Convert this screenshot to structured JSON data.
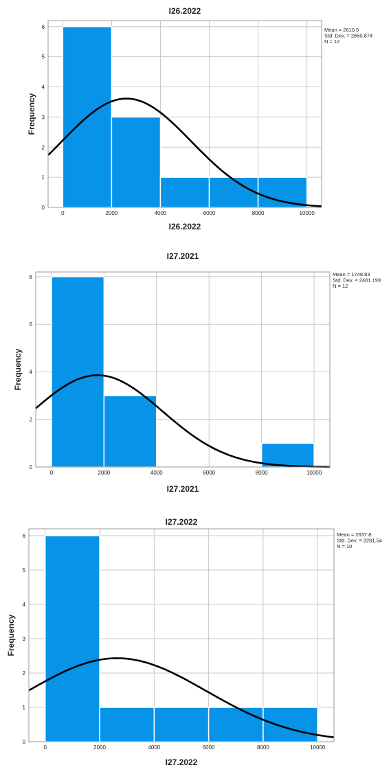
{
  "colors": {
    "bar": "#0693e8",
    "curve": "#000000",
    "grid": "#c8c8c8"
  },
  "chart_data": [
    {
      "type": "bar",
      "title": "I26.2022",
      "xlabel": "I26.2022",
      "ylabel": "Frequency",
      "bins": [
        [
          0,
          2000
        ],
        [
          2000,
          4000
        ],
        [
          4000,
          6000
        ],
        [
          6000,
          8000
        ],
        [
          8000,
          10000
        ]
      ],
      "values": [
        6,
        3,
        1,
        1,
        1
      ],
      "xlim": [
        -600,
        10600
      ],
      "ylim": [
        0,
        6.2
      ],
      "xticks": [
        0,
        2000,
        4000,
        6000,
        8000,
        10000
      ],
      "yticks": [
        0,
        1,
        2,
        3,
        4,
        5,
        6
      ],
      "normal_curve": {
        "mean": 2610.5,
        "std": 2650.874,
        "n": 12
      },
      "stats": [
        "Mean = 2610.5",
        "Std. Dev. = 2650.874",
        "N = 12"
      ],
      "grid": true,
      "legend": "top-right"
    },
    {
      "type": "bar",
      "title": "I27.2021",
      "xlabel": "I27.2021",
      "ylabel": "Frequency",
      "bins": [
        [
          0,
          2000
        ],
        [
          2000,
          4000
        ],
        [
          4000,
          6000
        ],
        [
          6000,
          8000
        ],
        [
          8000,
          10000
        ]
      ],
      "values": [
        8,
        3,
        0,
        0,
        1
      ],
      "xlim": [
        -600,
        10600
      ],
      "ylim": [
        0,
        8.2
      ],
      "xticks": [
        0,
        2000,
        4000,
        6000,
        8000,
        10000
      ],
      "yticks": [
        0,
        2,
        4,
        6,
        8
      ],
      "normal_curve": {
        "mean": 1748.83,
        "std": 2481.199,
        "n": 12
      },
      "stats": [
        "Mean = 1748.83",
        "Std. Dev. = 2481.199",
        "N = 12"
      ],
      "grid": true,
      "legend": "top-right"
    },
    {
      "type": "bar",
      "title": "I27.2022",
      "xlabel": "I27.2022",
      "ylabel": "Frequency",
      "bins": [
        [
          0,
          2000
        ],
        [
          2000,
          4000
        ],
        [
          4000,
          6000
        ],
        [
          6000,
          8000
        ],
        [
          8000,
          10000
        ]
      ],
      "values": [
        6,
        1,
        1,
        1,
        1
      ],
      "xlim": [
        -600,
        10600
      ],
      "ylim": [
        0,
        6.2
      ],
      "xticks": [
        0,
        2000,
        4000,
        6000,
        8000,
        10000
      ],
      "yticks": [
        0,
        1,
        2,
        3,
        4,
        5,
        6
      ],
      "normal_curve": {
        "mean": 2637.8,
        "std": 3281.54,
        "n": 10
      },
      "stats": [
        "Mean = 2637.8",
        "Std. Dev. = 3281.54",
        "N = 10"
      ],
      "grid": true,
      "legend": "top-right"
    }
  ]
}
